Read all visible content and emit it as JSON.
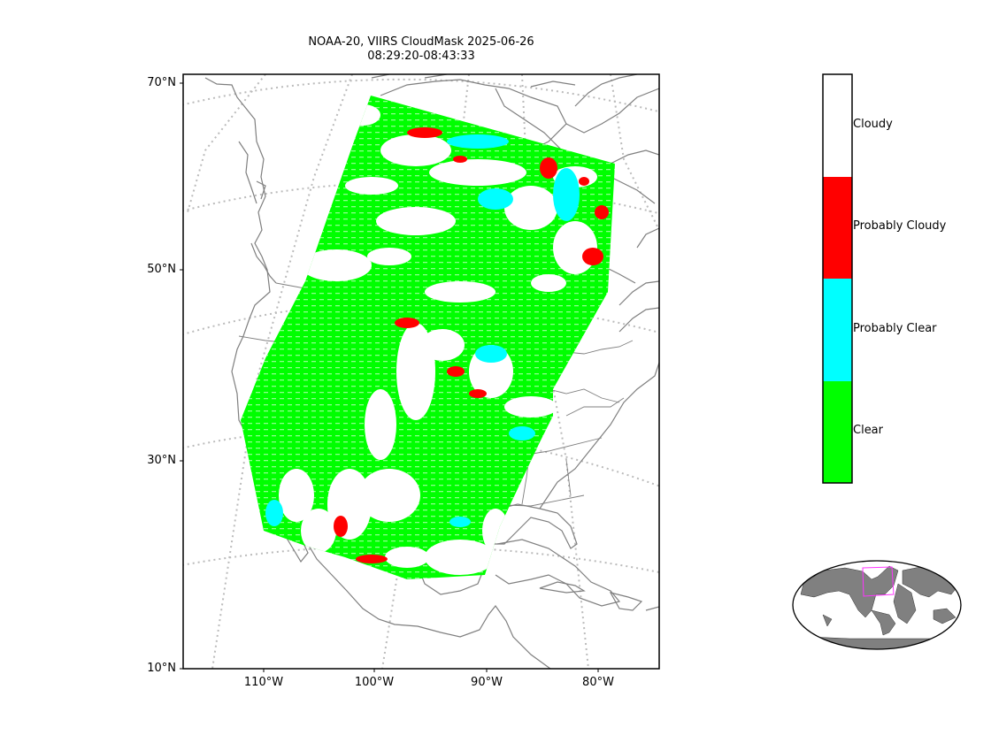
{
  "title": {
    "line1": "NOAA-20, VIIRS CloudMask 2025-06-26",
    "line2": "08:29:20-08:43:33"
  },
  "map": {
    "lat_labels": [
      "70°N",
      "50°N",
      "30°N",
      "10°N"
    ],
    "lon_labels": [
      "110°W",
      "100°W",
      "90°W",
      "80°W"
    ],
    "coastline_color": "#7f7f7f",
    "graticule_color": "#bbbbbb"
  },
  "legend": {
    "categories": [
      {
        "label": "Cloudy",
        "color": "#ffffff"
      },
      {
        "label": "Probably Cloudy",
        "color": "#ff0000"
      },
      {
        "label": "Probably Clear",
        "color": "#00ffff"
      },
      {
        "label": "Clear",
        "color": "#00ff00"
      }
    ]
  },
  "inset": {
    "land_color": "#808080",
    "highlight_color": "#ff33ff"
  }
}
